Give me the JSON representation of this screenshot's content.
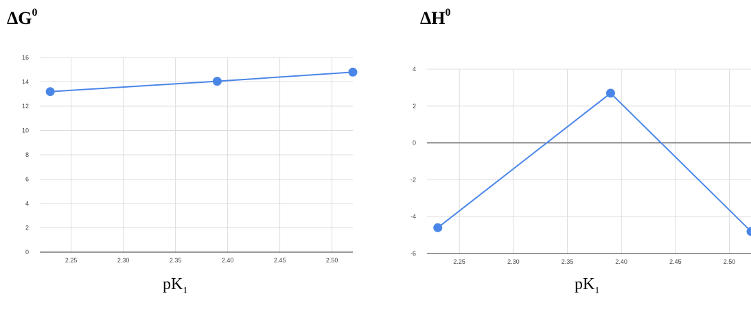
{
  "colors": {
    "series": "#4a86e8",
    "grid": "#dddddd",
    "baseline": "#333333",
    "zero": "#333333"
  },
  "chart_data": [
    {
      "type": "line",
      "title_main": "ΔG",
      "title_sup": "0",
      "xlabel_main": "pK",
      "xlabel_sub": "1",
      "x": [
        2.23,
        2.39,
        2.52
      ],
      "series": [
        {
          "values": [
            13.2,
            14.05,
            14.8
          ]
        }
      ],
      "xlim": [
        2.22,
        2.52
      ],
      "ylim": [
        0,
        16
      ],
      "xticks": [
        2.25,
        2.3,
        2.35,
        2.4,
        2.45,
        2.5
      ],
      "xtick_labels": [
        "2.25",
        "2.30",
        "2.35",
        "2.40",
        "2.45",
        "2.50"
      ],
      "yticks": [
        0,
        2,
        4,
        6,
        8,
        10,
        12,
        14,
        16
      ],
      "ytick_labels": [
        "0",
        "2",
        "4",
        "6",
        "8",
        "10",
        "12",
        "14",
        "16"
      ],
      "grid": true
    },
    {
      "type": "line",
      "title_main": "ΔH",
      "title_sup": "0",
      "xlabel_main": "pK",
      "xlabel_sub": "1",
      "x": [
        2.23,
        2.39,
        2.52
      ],
      "series": [
        {
          "values": [
            -4.6,
            2.7,
            -4.8
          ]
        }
      ],
      "xlim": [
        2.22,
        2.52
      ],
      "ylim": [
        -6,
        4
      ],
      "xticks": [
        2.25,
        2.3,
        2.35,
        2.4,
        2.45,
        2.5
      ],
      "xtick_labels": [
        "2.25",
        "2.30",
        "2.35",
        "2.40",
        "2.45",
        "2.50"
      ],
      "yticks": [
        -6,
        -4,
        -2,
        0,
        2,
        4
      ],
      "ytick_labels": [
        "-6",
        "-4",
        "-2",
        "0",
        "2",
        "4"
      ],
      "grid": true
    }
  ]
}
